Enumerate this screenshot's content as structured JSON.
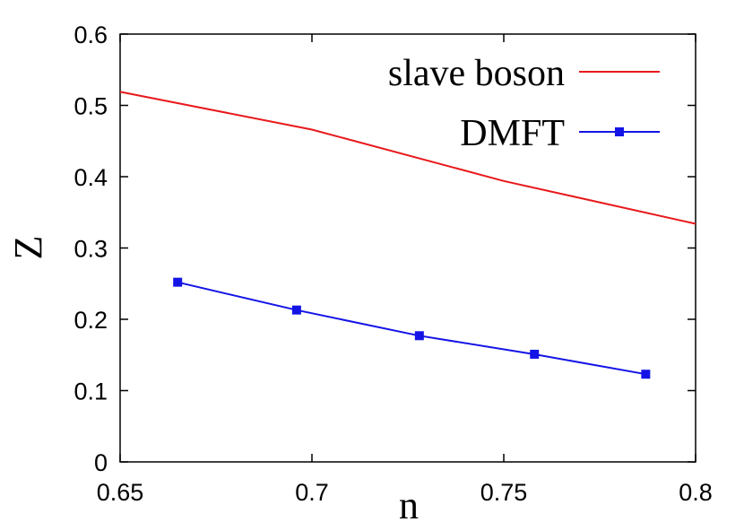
{
  "chart_data": {
    "type": "line",
    "xlabel": "n",
    "ylabel": "Z",
    "xlim": [
      0.65,
      0.8
    ],
    "ylim": [
      0,
      0.6
    ],
    "xticks": [
      "0.65",
      "0.7",
      "0.75",
      "0.8"
    ],
    "yticks": [
      "0",
      "0.1",
      "0.2",
      "0.3",
      "0.4",
      "0.5",
      "0.6"
    ],
    "legend_position": "top-right",
    "grid": false,
    "series": [
      {
        "name": "slave boson",
        "color": "#e8191c",
        "marker": "none",
        "x": [
          0.65,
          0.7,
          0.75,
          0.8
        ],
        "y": [
          0.519,
          0.466,
          0.394,
          0.334
        ]
      },
      {
        "name": "DMFT",
        "color": "#1414e6",
        "marker": "square",
        "x": [
          0.665,
          0.696,
          0.728,
          0.758,
          0.787
        ],
        "y": [
          0.252,
          0.213,
          0.177,
          0.151,
          0.123
        ]
      }
    ]
  }
}
